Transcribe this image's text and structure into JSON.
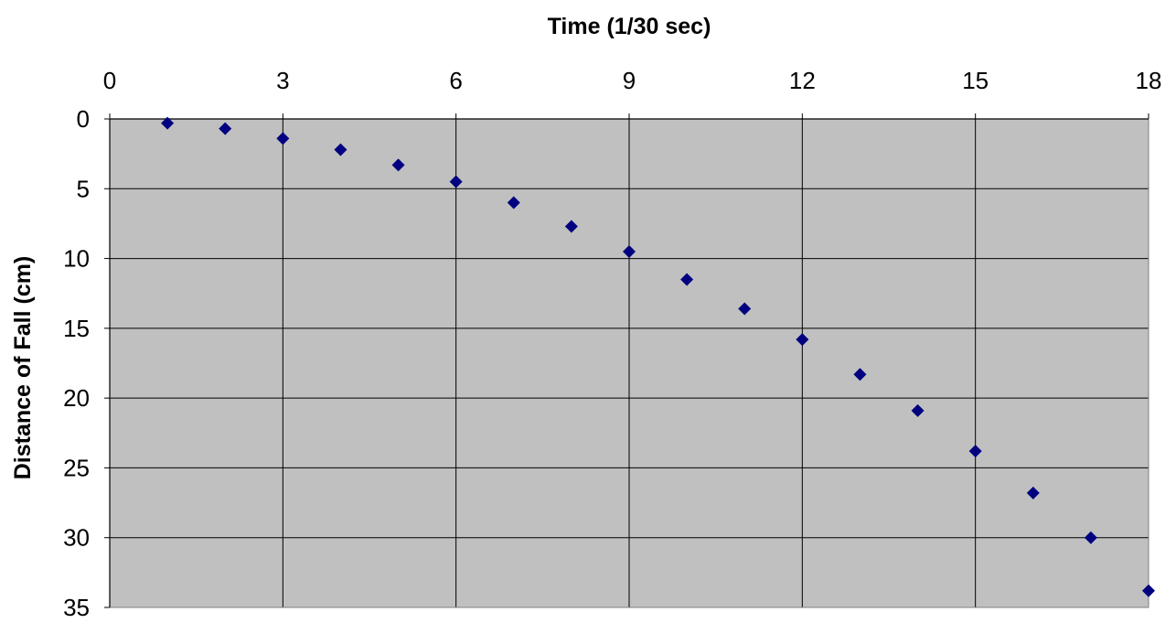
{
  "chart_data": {
    "type": "scatter",
    "title": "",
    "xlabel": "Time (1/30 sec)",
    "ylabel": "Distance of Fall (cm)",
    "x_axis_position": "top",
    "y_axis_inverted": true,
    "xlim": [
      0,
      18
    ],
    "ylim": [
      0,
      35
    ],
    "x_ticks": [
      0,
      3,
      6,
      9,
      12,
      15,
      18
    ],
    "y_ticks": [
      0,
      5,
      10,
      15,
      20,
      25,
      30,
      35
    ],
    "grid": true,
    "plot_background": "#c0c0c0",
    "marker": "diamond",
    "marker_color": "#000080",
    "series": [
      {
        "x": [
          1,
          2,
          3,
          4,
          5,
          6,
          7,
          8,
          9,
          10,
          11,
          12,
          13,
          14,
          15,
          16,
          17,
          18
        ],
        "y": [
          0.3,
          0.7,
          1.4,
          2.2,
          3.3,
          4.5,
          6.0,
          7.7,
          9.5,
          11.5,
          13.6,
          15.8,
          18.3,
          20.9,
          23.8,
          26.8,
          30.0,
          33.8
        ]
      }
    ]
  }
}
